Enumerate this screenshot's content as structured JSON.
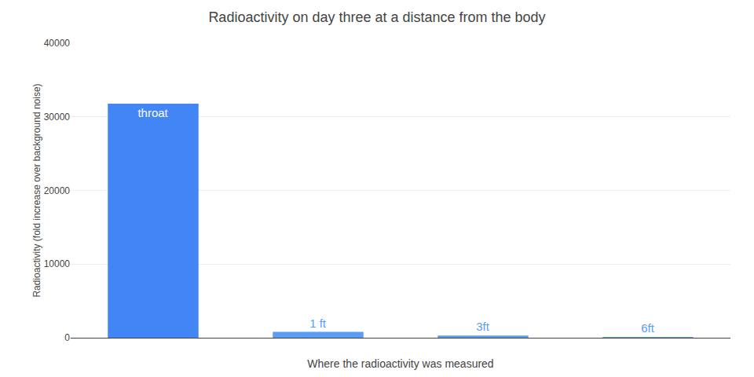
{
  "chart_data": {
    "type": "bar",
    "title": "Radioactivity on day three at a distance from the body",
    "x_label": "Where the radioactivity was measured",
    "y_label": "Radioactivity (fold increase over background noise)",
    "categories": [
      "throat",
      "1 ft",
      "3ft",
      "6ft"
    ],
    "values": [
      31800,
      800,
      300,
      50
    ],
    "colors": [
      "#4285f4",
      "#5b9cf6",
      "#5b9cf6",
      "#5b9cf6"
    ],
    "ylim": [
      0,
      40000
    ],
    "yticks": [
      0,
      10000,
      20000,
      30000,
      40000
    ],
    "grid": true,
    "tick_labels": "y"
  }
}
